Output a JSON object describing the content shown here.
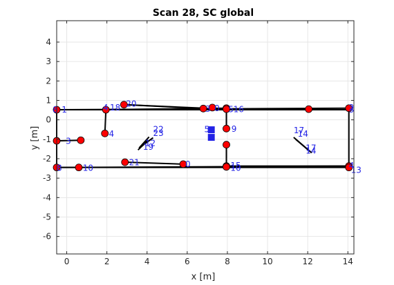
{
  "chart_data": {
    "type": "scatter",
    "title": "Scan 28, SC global",
    "xlabel": "x [m]",
    "ylabel": "y [m]",
    "xlim": [
      -0.5,
      14.3
    ],
    "ylim": [
      -6.9,
      5.1
    ],
    "xticks": [
      0,
      2,
      4,
      6,
      8,
      10,
      12,
      14
    ],
    "yticks": [
      -6,
      -5,
      -4,
      -3,
      -2,
      -1,
      0,
      1,
      2,
      3,
      4
    ],
    "grid": true,
    "colors": {
      "node": "#ff0000",
      "label": "#2323e6",
      "edge": "#000000",
      "marker": "#0000ff"
    },
    "nodes": [
      {
        "x": -0.5,
        "y": 0.52
      },
      {
        "x": 1.95,
        "y": 0.52
      },
      {
        "x": 2.85,
        "y": 0.78
      },
      {
        "x": 6.8,
        "y": 0.58
      },
      {
        "x": 7.25,
        "y": 0.63
      },
      {
        "x": 7.95,
        "y": 0.6
      },
      {
        "x": 7.95,
        "y": 0.55
      },
      {
        "x": 12.05,
        "y": 0.55
      },
      {
        "x": 14.05,
        "y": 0.6
      },
      {
        "x": 1.9,
        "y": -0.7
      },
      {
        "x": -0.5,
        "y": -1.08
      },
      {
        "x": 0.7,
        "y": -1.05
      },
      {
        "x": 7.95,
        "y": -0.45
      },
      {
        "x": 7.95,
        "y": -1.28
      },
      {
        "x": 2.9,
        "y": -2.18
      },
      {
        "x": 5.8,
        "y": -2.28
      },
      {
        "x": 7.95,
        "y": -2.38
      },
      {
        "x": 7.95,
        "y": -2.42
      },
      {
        "x": -0.5,
        "y": -2.45
      },
      {
        "x": 0.6,
        "y": -2.45
      },
      {
        "x": 14.05,
        "y": -2.38
      },
      {
        "x": 14.05,
        "y": -2.45
      }
    ],
    "edges": [
      [
        -0.5,
        0.52,
        14.05,
        0.52
      ],
      [
        -0.5,
        0.52,
        14.05,
        0.6
      ],
      [
        1.95,
        0.52,
        7.95,
        0.6
      ],
      [
        2.85,
        0.78,
        6.8,
        0.58
      ],
      [
        2.85,
        0.78,
        7.95,
        0.55
      ],
      [
        14.05,
        0.6,
        14.05,
        -2.45
      ],
      [
        -0.5,
        0.52,
        -0.5,
        -2.45
      ],
      [
        1.95,
        0.52,
        1.9,
        -0.7
      ],
      [
        -0.5,
        -1.08,
        0.7,
        -1.05
      ],
      [
        7.95,
        0.6,
        7.95,
        -0.45
      ],
      [
        7.95,
        -1.28,
        7.95,
        -2.42
      ],
      [
        -0.5,
        -2.45,
        14.05,
        -2.45
      ],
      [
        -0.5,
        -2.45,
        14.05,
        -2.38
      ],
      [
        2.9,
        -2.18,
        5.8,
        -2.28
      ],
      [
        7.95,
        -2.38,
        14.05,
        -2.38
      ],
      [
        4.1,
        -0.88,
        3.6,
        -1.45
      ],
      [
        4.3,
        -0.92,
        3.7,
        -1.38
      ],
      [
        4.05,
        -1.05,
        3.55,
        -1.55
      ],
      [
        11.3,
        -0.9,
        12.2,
        -1.7
      ],
      [
        11.4,
        -1.0,
        12.1,
        -1.62
      ]
    ],
    "labels": [
      {
        "x": -0.7,
        "y": 0.52,
        "text": "8"
      },
      {
        "x": -0.25,
        "y": 0.52,
        "text": "1"
      },
      {
        "x": 1.8,
        "y": 0.62,
        "text": "4"
      },
      {
        "x": 2.15,
        "y": 0.62,
        "text": "18"
      },
      {
        "x": 2.95,
        "y": 0.82,
        "text": "20"
      },
      {
        "x": 6.9,
        "y": 0.55,
        "text": "3"
      },
      {
        "x": 7.35,
        "y": 0.6,
        "text": "0"
      },
      {
        "x": 8.05,
        "y": 0.53,
        "text": "5"
      },
      {
        "x": 8.3,
        "y": 0.53,
        "text": "16"
      },
      {
        "x": 14.05,
        "y": 0.62,
        "text": "2"
      },
      {
        "x": 14.05,
        "y": 0.52,
        "text": "3"
      },
      {
        "x": 2.1,
        "y": -0.72,
        "text": "4"
      },
      {
        "x": 4.3,
        "y": -0.5,
        "text": "22"
      },
      {
        "x": 4.3,
        "y": -0.68,
        "text": "23"
      },
      {
        "x": 3.9,
        "y": -1.2,
        "text": "12"
      },
      {
        "x": 3.8,
        "y": -1.4,
        "text": "19"
      },
      {
        "x": -0.05,
        "y": -1.1,
        "text": "3"
      },
      {
        "x": 8.2,
        "y": -0.48,
        "text": "9"
      },
      {
        "x": 11.3,
        "y": -0.55,
        "text": "17"
      },
      {
        "x": 11.5,
        "y": -0.73,
        "text": "14"
      },
      {
        "x": 11.9,
        "y": -1.45,
        "text": "17"
      },
      {
        "x": 11.9,
        "y": -1.6,
        "text": "14"
      },
      {
        "x": 3.1,
        "y": -2.2,
        "text": "21"
      },
      {
        "x": 5.9,
        "y": -2.28,
        "text": "0"
      },
      {
        "x": 8.15,
        "y": -2.35,
        "text": "15"
      },
      {
        "x": 8.15,
        "y": -2.48,
        "text": "10"
      },
      {
        "x": -0.5,
        "y": -2.48,
        "text": "8"
      },
      {
        "x": 0.8,
        "y": -2.48,
        "text": "10"
      },
      {
        "x": 14.05,
        "y": -2.35,
        "text": "4"
      },
      {
        "x": 14.15,
        "y": -2.58,
        "text": "13"
      },
      {
        "x": 6.85,
        "y": -0.5,
        "text": "5"
      }
    ],
    "markers": [
      {
        "x": 7.2,
        "y": -0.45,
        "text": "■"
      },
      {
        "x": 7.2,
        "y": -0.85,
        "text": "■"
      }
    ]
  }
}
